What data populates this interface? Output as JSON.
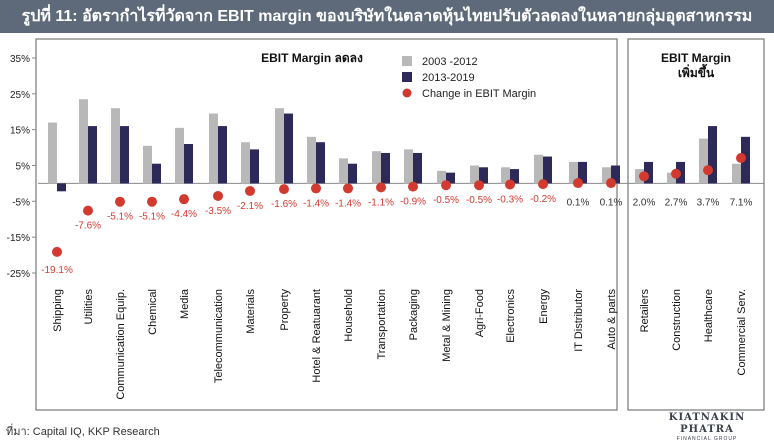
{
  "title": "รูปที่ 11: อัตรากำไรที่วัดจาก EBIT margin ของบริษัทในตลาดหุ้นไทยปรับตัวลดลงในหลายกลุ่มอุตสาหกรรม",
  "source": "ที่มา: Capital IQ, KKP Research",
  "logo": {
    "main": "KIATNAKIN PHATRA",
    "sub": "FINANCIAL GROUP"
  },
  "colors": {
    "title_bg": "#5e6a79",
    "series1": "#b8b8b8",
    "series2": "#2d2a59",
    "change": "#d23a30",
    "panel_border": "#777777"
  },
  "chart_data": {
    "type": "bar",
    "ylim": [
      -25,
      35
    ],
    "yticks": [
      {
        "value": 35,
        "label": "35%"
      },
      {
        "value": 25,
        "label": "25%"
      },
      {
        "value": 15,
        "label": "15%"
      },
      {
        "value": 5,
        "label": "5%"
      },
      {
        "value": -5,
        "label": "-5%"
      },
      {
        "value": -15,
        "label": "-15%"
      },
      {
        "value": -25,
        "label": "-25%"
      }
    ],
    "categories": [
      "Shipping",
      "Utilities",
      "Communication Equip.",
      "Chemical",
      "Media",
      "Telecommunication",
      "Materials",
      "Property",
      "Hotel & Reatuarant",
      "Household",
      "Transportation",
      "Packaging",
      "Metal & Mining",
      "Agri-Food",
      "Electronics",
      "Energy",
      "IT Distributor",
      "Auto & parts",
      "Retailers",
      "Construction",
      "Healthcare",
      "Commercial Serv."
    ],
    "series": [
      {
        "name": "2003 -2012",
        "type": "bar",
        "values": [
          17,
          23.5,
          21,
          10.5,
          15.5,
          19.5,
          11.5,
          21,
          13,
          7,
          9,
          9.5,
          3.5,
          5,
          4.5,
          8,
          6,
          4.5,
          4,
          3,
          12.5,
          5.5
        ]
      },
      {
        "name": "2013-2019",
        "type": "bar",
        "values": [
          -2.2,
          16,
          16,
          5.5,
          11,
          16,
          9.5,
          19.5,
          11.5,
          5.5,
          8.5,
          8.5,
          3,
          4.5,
          4,
          7.5,
          6,
          5,
          6,
          6,
          16,
          13
        ]
      },
      {
        "name": "Change in EBIT Margin",
        "type": "scatter",
        "values": [
          -19.1,
          -7.6,
          -5.1,
          -5.1,
          -4.4,
          -3.5,
          -2.1,
          -1.6,
          -1.4,
          -1.4,
          -1.1,
          -0.9,
          -0.5,
          -0.5,
          -0.3,
          -0.2,
          0.1,
          0.1,
          2.0,
          2.7,
          3.7,
          7.1
        ]
      }
    ],
    "change_labels": [
      "-19.1%",
      "-7.6%",
      "-5.1%",
      "-5.1%",
      "-4.4%",
      "-3.5%",
      "-2.1%",
      "-1.6%",
      "-1.4%",
      "-1.4%",
      "-1.1%",
      "-0.9%",
      "-0.5%",
      "-0.5%",
      "-0.3%",
      "-0.2%",
      "0.1%",
      "0.1%",
      "2.0%",
      "2.7%",
      "3.7%",
      "7.1%"
    ],
    "panels": [
      {
        "label": "EBIT Margin ลดลง",
        "lines": [
          "EBIT Margin ลดลง"
        ],
        "start": 0,
        "end": 17
      },
      {
        "label": "EBIT Margin เพิ่มขึ้น",
        "lines": [
          "EBIT Margin",
          "เพิ่มขึ้น"
        ],
        "start": 18,
        "end": 21
      }
    ],
    "legend_position": "top-center",
    "grid": false
  }
}
